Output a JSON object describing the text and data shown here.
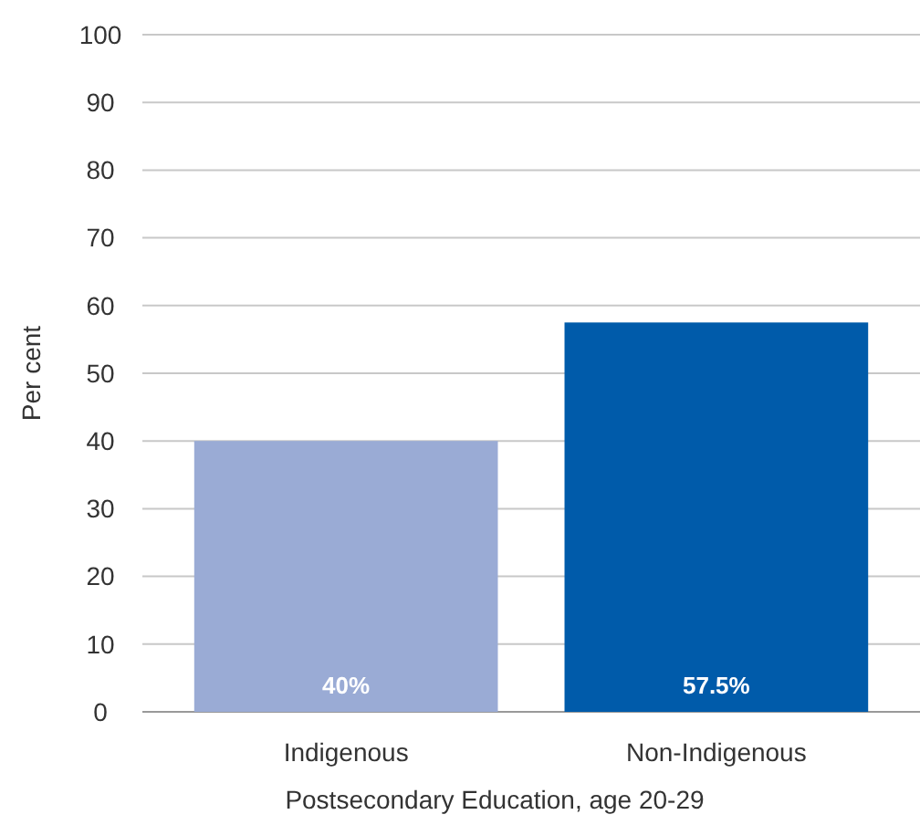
{
  "chart_data": {
    "type": "bar",
    "xlabel": "Postsecondary Education, age 20-29",
    "ylabel": "Per cent",
    "categories": [
      "Indigenous",
      "Non-Indigenous"
    ],
    "values": [
      40,
      57.5
    ],
    "colors": [
      "#9aabd5",
      "#005baa"
    ],
    "value_labels": [
      "40%",
      "57.5%"
    ],
    "ylim": [
      0,
      100
    ],
    "yticks": [
      0,
      10,
      20,
      30,
      40,
      50,
      60,
      70,
      80,
      90,
      100
    ],
    "grid": "y"
  }
}
